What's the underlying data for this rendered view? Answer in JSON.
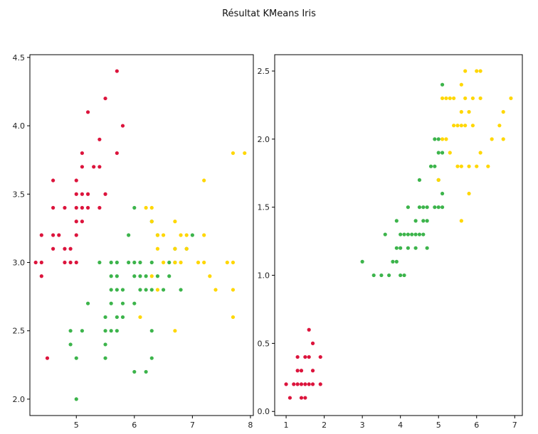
{
  "figure": {
    "suptitle": "Résultat KMeans Iris"
  },
  "colors": {
    "cluster_0": "#dc143c",
    "cluster_1": "#3cb44b",
    "cluster_2": "#ffd700"
  },
  "chart_data": [
    {
      "type": "scatter",
      "title": "",
      "xlabel": "",
      "ylabel": "",
      "xlim": [
        4.2,
        8.05
      ],
      "ylim": [
        1.88,
        4.52
      ],
      "xticks": [
        5,
        6,
        7,
        8
      ],
      "yticks": [
        2.0,
        2.5,
        3.0,
        3.5,
        4.0,
        4.5
      ],
      "grid": false,
      "series": [
        {
          "color_key": "cluster_0",
          "points": [
            [
              4.3,
              3.0
            ],
            [
              4.4,
              2.9
            ],
            [
              4.4,
              3.0
            ],
            [
              4.4,
              3.2
            ],
            [
              4.5,
              2.3
            ],
            [
              4.6,
              3.1
            ],
            [
              4.6,
              3.2
            ],
            [
              4.6,
              3.4
            ],
            [
              4.6,
              3.6
            ],
            [
              4.7,
              3.2
            ],
            [
              4.8,
              3.0
            ],
            [
              4.8,
              3.1
            ],
            [
              4.8,
              3.4
            ],
            [
              4.9,
              3.0
            ],
            [
              4.9,
              3.1
            ],
            [
              5.0,
              3.0
            ],
            [
              5.0,
              3.2
            ],
            [
              5.0,
              3.3
            ],
            [
              5.0,
              3.4
            ],
            [
              5.0,
              3.5
            ],
            [
              5.0,
              3.6
            ],
            [
              5.1,
              3.3
            ],
            [
              5.1,
              3.4
            ],
            [
              5.1,
              3.5
            ],
            [
              5.1,
              3.7
            ],
            [
              5.1,
              3.8
            ],
            [
              5.2,
              3.4
            ],
            [
              5.2,
              3.5
            ],
            [
              5.2,
              4.1
            ],
            [
              5.3,
              3.7
            ],
            [
              5.4,
              3.4
            ],
            [
              5.4,
              3.7
            ],
            [
              5.4,
              3.9
            ],
            [
              5.5,
              3.5
            ],
            [
              5.5,
              4.2
            ],
            [
              5.7,
              3.8
            ],
            [
              5.7,
              4.4
            ],
            [
              5.8,
              4.0
            ]
          ]
        },
        {
          "color_key": "cluster_1",
          "points": [
            [
              4.9,
              2.4
            ],
            [
              4.9,
              2.5
            ],
            [
              5.0,
              2.0
            ],
            [
              5.0,
              2.3
            ],
            [
              5.1,
              2.5
            ],
            [
              5.2,
              2.7
            ],
            [
              5.4,
              3.0
            ],
            [
              5.5,
              2.3
            ],
            [
              5.5,
              2.4
            ],
            [
              5.5,
              2.5
            ],
            [
              5.5,
              2.6
            ],
            [
              5.6,
              2.5
            ],
            [
              5.6,
              2.7
            ],
            [
              5.6,
              2.8
            ],
            [
              5.6,
              2.9
            ],
            [
              5.6,
              3.0
            ],
            [
              5.7,
              2.5
            ],
            [
              5.7,
              2.6
            ],
            [
              5.7,
              2.8
            ],
            [
              5.7,
              2.9
            ],
            [
              5.7,
              3.0
            ],
            [
              5.8,
              2.6
            ],
            [
              5.8,
              2.7
            ],
            [
              5.8,
              2.8
            ],
            [
              5.9,
              3.0
            ],
            [
              5.9,
              3.2
            ],
            [
              6.0,
              2.2
            ],
            [
              6.0,
              2.7
            ],
            [
              6.0,
              2.9
            ],
            [
              6.0,
              3.0
            ],
            [
              6.0,
              3.4
            ],
            [
              6.1,
              2.8
            ],
            [
              6.1,
              2.9
            ],
            [
              6.1,
              3.0
            ],
            [
              6.2,
              2.2
            ],
            [
              6.2,
              2.8
            ],
            [
              6.2,
              2.9
            ],
            [
              6.3,
              2.3
            ],
            [
              6.3,
              2.5
            ],
            [
              6.3,
              2.8
            ],
            [
              6.3,
              3.0
            ],
            [
              6.3,
              3.3
            ],
            [
              6.4,
              2.9
            ],
            [
              6.4,
              3.2
            ],
            [
              6.5,
              2.8
            ],
            [
              6.6,
              2.9
            ],
            [
              6.6,
              3.0
            ],
            [
              6.7,
              3.0
            ],
            [
              6.7,
              3.1
            ],
            [
              6.8,
              2.8
            ],
            [
              6.9,
              3.1
            ],
            [
              7.0,
              3.2
            ]
          ]
        },
        {
          "color_key": "cluster_2",
          "points": [
            [
              6.1,
              2.6
            ],
            [
              6.2,
              3.4
            ],
            [
              6.3,
              2.9
            ],
            [
              6.3,
              3.3
            ],
            [
              6.3,
              3.4
            ],
            [
              6.4,
              2.8
            ],
            [
              6.4,
              3.1
            ],
            [
              6.4,
              3.2
            ],
            [
              6.5,
              3.0
            ],
            [
              6.5,
              3.2
            ],
            [
              6.7,
              2.5
            ],
            [
              6.7,
              3.0
            ],
            [
              6.7,
              3.1
            ],
            [
              6.7,
              3.3
            ],
            [
              6.8,
              3.0
            ],
            [
              6.8,
              3.2
            ],
            [
              6.9,
              3.1
            ],
            [
              6.9,
              3.2
            ],
            [
              7.1,
              3.0
            ],
            [
              7.2,
              3.0
            ],
            [
              7.2,
              3.2
            ],
            [
              7.2,
              3.6
            ],
            [
              7.3,
              2.9
            ],
            [
              7.4,
              2.8
            ],
            [
              7.6,
              3.0
            ],
            [
              7.7,
              2.6
            ],
            [
              7.7,
              2.8
            ],
            [
              7.7,
              3.0
            ],
            [
              7.7,
              3.8
            ],
            [
              7.9,
              3.8
            ]
          ]
        }
      ]
    },
    {
      "type": "scatter",
      "title": "",
      "xlabel": "",
      "ylabel": "",
      "xlim": [
        0.7,
        7.2
      ],
      "ylim": [
        -0.03,
        2.62
      ],
      "xticks": [
        1,
        2,
        3,
        4,
        5,
        6,
        7
      ],
      "yticks": [
        0.0,
        0.5,
        1.0,
        1.5,
        2.0,
        2.5
      ],
      "grid": false,
      "series": [
        {
          "color_key": "cluster_0",
          "points": [
            [
              1.0,
              0.2
            ],
            [
              1.1,
              0.1
            ],
            [
              1.2,
              0.2
            ],
            [
              1.3,
              0.2
            ],
            [
              1.3,
              0.3
            ],
            [
              1.3,
              0.4
            ],
            [
              1.4,
              0.1
            ],
            [
              1.4,
              0.2
            ],
            [
              1.4,
              0.3
            ],
            [
              1.5,
              0.1
            ],
            [
              1.5,
              0.2
            ],
            [
              1.5,
              0.4
            ],
            [
              1.6,
              0.2
            ],
            [
              1.6,
              0.4
            ],
            [
              1.6,
              0.6
            ],
            [
              1.7,
              0.2
            ],
            [
              1.7,
              0.3
            ],
            [
              1.7,
              0.5
            ],
            [
              1.9,
              0.2
            ],
            [
              1.9,
              0.4
            ]
          ]
        },
        {
          "color_key": "cluster_1",
          "points": [
            [
              3.0,
              1.1
            ],
            [
              3.3,
              1.0
            ],
            [
              3.5,
              1.0
            ],
            [
              3.6,
              1.3
            ],
            [
              3.7,
              1.0
            ],
            [
              3.8,
              1.1
            ],
            [
              3.9,
              1.1
            ],
            [
              3.9,
              1.2
            ],
            [
              3.9,
              1.4
            ],
            [
              4.0,
              1.0
            ],
            [
              4.0,
              1.2
            ],
            [
              4.0,
              1.3
            ],
            [
              4.1,
              1.0
            ],
            [
              4.1,
              1.3
            ],
            [
              4.2,
              1.2
            ],
            [
              4.2,
              1.3
            ],
            [
              4.2,
              1.5
            ],
            [
              4.3,
              1.3
            ],
            [
              4.4,
              1.2
            ],
            [
              4.4,
              1.3
            ],
            [
              4.4,
              1.4
            ],
            [
              4.5,
              1.3
            ],
            [
              4.5,
              1.5
            ],
            [
              4.5,
              1.7
            ],
            [
              4.6,
              1.3
            ],
            [
              4.6,
              1.4
            ],
            [
              4.6,
              1.5
            ],
            [
              4.7,
              1.2
            ],
            [
              4.7,
              1.4
            ],
            [
              4.7,
              1.5
            ],
            [
              4.8,
              1.8
            ],
            [
              4.9,
              1.5
            ],
            [
              4.9,
              1.8
            ],
            [
              4.9,
              2.0
            ],
            [
              5.0,
              1.5
            ],
            [
              5.0,
              1.7
            ],
            [
              5.0,
              1.9
            ],
            [
              5.0,
              2.0
            ],
            [
              5.1,
              1.5
            ],
            [
              5.1,
              1.6
            ],
            [
              5.1,
              1.9
            ],
            [
              5.1,
              2.4
            ]
          ]
        },
        {
          "color_key": "cluster_2",
          "points": [
            [
              5.0,
              1.7
            ],
            [
              5.1,
              2.0
            ],
            [
              5.1,
              2.3
            ],
            [
              5.2,
              2.0
            ],
            [
              5.2,
              2.3
            ],
            [
              5.3,
              1.9
            ],
            [
              5.3,
              2.3
            ],
            [
              5.4,
              2.1
            ],
            [
              5.4,
              2.3
            ],
            [
              5.5,
              1.8
            ],
            [
              5.5,
              2.1
            ],
            [
              5.6,
              1.4
            ],
            [
              5.6,
              1.8
            ],
            [
              5.6,
              2.1
            ],
            [
              5.6,
              2.2
            ],
            [
              5.6,
              2.4
            ],
            [
              5.7,
              2.1
            ],
            [
              5.7,
              2.3
            ],
            [
              5.7,
              2.5
            ],
            [
              5.8,
              1.6
            ],
            [
              5.8,
              1.8
            ],
            [
              5.8,
              2.2
            ],
            [
              5.9,
              2.1
            ],
            [
              5.9,
              2.3
            ],
            [
              6.0,
              1.8
            ],
            [
              6.0,
              2.5
            ],
            [
              6.1,
              1.9
            ],
            [
              6.1,
              2.3
            ],
            [
              6.1,
              2.5
            ],
            [
              6.3,
              1.8
            ],
            [
              6.4,
              2.0
            ],
            [
              6.6,
              2.1
            ],
            [
              6.7,
              2.0
            ],
            [
              6.7,
              2.2
            ],
            [
              6.9,
              2.3
            ]
          ]
        }
      ]
    }
  ]
}
